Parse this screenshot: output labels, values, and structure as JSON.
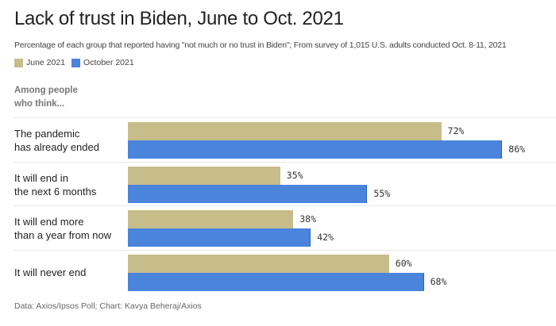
{
  "title": "Lack of trust in Biden, June to Oct. 2021",
  "subtitle": "Percentage of each group that reported having \"not much or no trust in Biden\"; From survey of 1,015 U.S. adults conducted Oct. 8-11, 2021",
  "legend": [
    {
      "label": "June 2021",
      "color": "#c7bd8a"
    },
    {
      "label": "October 2021",
      "color": "#4a84db"
    }
  ],
  "group_header": [
    "Among people",
    "who think..."
  ],
  "footer": "Data: Axios/Ipsos Poll; Chart: Kavya Beheraj/Axios",
  "chart_data": {
    "type": "bar",
    "orientation": "horizontal",
    "title": "Lack of trust in Biden, June to Oct. 2021",
    "categories": [
      [
        "The pandemic",
        "has already ended"
      ],
      [
        "It will end in",
        "the next 6 months"
      ],
      [
        "It will end more",
        "than a year from now"
      ],
      [
        "It will never end"
      ]
    ],
    "series": [
      {
        "name": "June 2021",
        "values": [
          72,
          35,
          38,
          60
        ],
        "labels": [
          "72%",
          "35%",
          "38%",
          "60%"
        ]
      },
      {
        "name": "October 2021",
        "values": [
          86,
          55,
          42,
          68
        ],
        "labels": [
          "86%",
          "55%",
          "42%",
          "68%"
        ]
      }
    ],
    "xlim": [
      0,
      100
    ],
    "unit": "%",
    "grid": false,
    "legend_position": "top-left"
  }
}
